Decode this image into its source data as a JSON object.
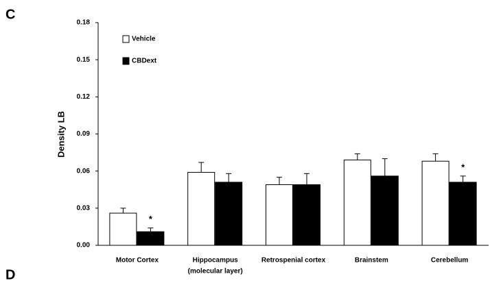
{
  "panel_labels": [
    "C",
    "D"
  ],
  "chart_data": {
    "type": "bar",
    "ylabel": "Density LB",
    "categories": [
      "Motor Cortex",
      [
        "Hippocampus",
        "(molecular layer)"
      ],
      "Retrospenial cortex",
      "Brainstem",
      "Cerebellum"
    ],
    "series": [
      {
        "name": "Vehicle",
        "color": "#ffffff",
        "values": [
          0.026,
          0.059,
          0.049,
          0.069,
          0.068
        ],
        "errors": [
          0.004,
          0.008,
          0.006,
          0.005,
          0.006
        ],
        "annotations": [
          null,
          null,
          null,
          null,
          null
        ]
      },
      {
        "name": "CBDext",
        "color": "#000000",
        "values": [
          0.011,
          0.051,
          0.049,
          0.056,
          0.051
        ],
        "errors": [
          0.003,
          0.007,
          0.009,
          0.014,
          0.005
        ],
        "annotations": [
          "*",
          null,
          null,
          null,
          "*"
        ]
      }
    ],
    "ylim": [
      0,
      0.18
    ],
    "yticks": [
      {
        "value": 0,
        "label": "0.00"
      },
      {
        "value": 0.03,
        "label": "0.03"
      },
      {
        "value": 0.06,
        "label": "0.06"
      },
      {
        "value": 0.09,
        "label": "0.09"
      },
      {
        "value": 0.12,
        "label": "0.12"
      },
      {
        "value": 0.15,
        "label": "0.15"
      },
      {
        "value": 0.18,
        "label": "0.18"
      }
    ],
    "legend": "top-left",
    "grid": false
  }
}
